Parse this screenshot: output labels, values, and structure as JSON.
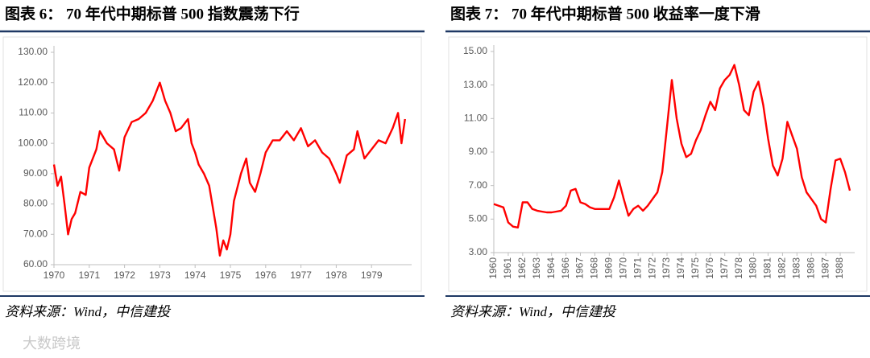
{
  "chart_data": [
    {
      "type": "line",
      "title": "图表 6：  70 年代中期标普 500 指数震荡下行",
      "source": "资料来源：Wind，中信建投",
      "color": "#ff0000",
      "x": [
        1970.0,
        1970.1,
        1970.2,
        1970.3,
        1970.4,
        1970.5,
        1970.6,
        1970.75,
        1970.9,
        1971.0,
        1971.2,
        1971.3,
        1971.5,
        1971.7,
        1971.85,
        1972.0,
        1972.2,
        1972.4,
        1972.6,
        1972.8,
        1973.0,
        1973.15,
        1973.3,
        1973.45,
        1973.6,
        1973.8,
        1973.9,
        1974.0,
        1974.1,
        1974.25,
        1974.4,
        1974.5,
        1974.6,
        1974.7,
        1974.8,
        1974.9,
        1975.0,
        1975.1,
        1975.3,
        1975.45,
        1975.55,
        1975.7,
        1975.85,
        1976.0,
        1976.2,
        1976.4,
        1976.6,
        1976.8,
        1977.0,
        1977.2,
        1977.4,
        1977.6,
        1977.8,
        1978.0,
        1978.1,
        1978.3,
        1978.5,
        1978.6,
        1978.8,
        1979.0,
        1979.2,
        1979.4,
        1979.6,
        1979.75,
        1979.85,
        1979.95
      ],
      "values": [
        93,
        86,
        89,
        80,
        70,
        75,
        77,
        84,
        83,
        92,
        98,
        104,
        100,
        98,
        91,
        102,
        107,
        108,
        110,
        114,
        120,
        114,
        110,
        104,
        105,
        108,
        100,
        97,
        93,
        90,
        86,
        79,
        72,
        63,
        68,
        65,
        70,
        81,
        90,
        95,
        87,
        84,
        90,
        97,
        101,
        101,
        104,
        101,
        105,
        99,
        101,
        97,
        95,
        90,
        87,
        96,
        98,
        104,
        95,
        98,
        101,
        100,
        105,
        110,
        100,
        108
      ],
      "xlim": [
        1970,
        1980
      ],
      "xticks": [
        1970,
        1971,
        1972,
        1973,
        1974,
        1975,
        1976,
        1977,
        1978,
        1979
      ],
      "ylim": [
        60,
        130
      ],
      "yticks": [
        {
          "value": 60,
          "label": "60.00"
        },
        {
          "value": 70,
          "label": "70.00"
        },
        {
          "value": 80,
          "label": "80.00"
        },
        {
          "value": 90,
          "label": "90.00"
        },
        {
          "value": 100,
          "label": "100.00"
        },
        {
          "value": 110,
          "label": "110.00"
        },
        {
          "value": 120,
          "label": "120.00"
        },
        {
          "value": 130,
          "label": "130.00"
        }
      ]
    },
    {
      "type": "line",
      "title": "图表 7：  70 年代中期标普 500 收益率一度下滑",
      "source": "资料来源：Wind，中信建投",
      "color": "#ff0000",
      "categories": [
        "1960",
        null,
        null,
        "1961",
        null,
        null,
        "1962",
        null,
        null,
        "1963",
        null,
        null,
        "1964",
        null,
        null,
        "1966",
        null,
        null,
        "1967",
        null,
        null,
        "1968",
        null,
        null,
        "1969",
        null,
        null,
        "1970",
        null,
        null,
        "1971",
        null,
        null,
        "1972",
        null,
        null,
        "1973",
        null,
        null,
        "1974",
        null,
        null,
        "1975",
        null,
        null,
        "1976",
        null,
        null,
        "1977",
        null,
        null,
        "1978",
        null,
        null,
        "1980",
        null,
        null,
        "1981",
        null,
        null,
        "1982",
        null,
        null,
        "1983",
        null,
        null,
        "1986",
        null,
        null,
        "1987",
        null,
        null,
        "1988",
        null,
        null
      ],
      "values": [
        5.9,
        5.8,
        5.7,
        4.8,
        4.55,
        4.5,
        6.0,
        6.0,
        5.6,
        5.5,
        5.45,
        5.4,
        5.4,
        5.45,
        5.5,
        5.8,
        6.7,
        6.8,
        6.0,
        5.9,
        5.7,
        5.6,
        5.6,
        5.6,
        5.6,
        6.3,
        7.3,
        6.2,
        5.2,
        5.6,
        5.8,
        5.5,
        5.8,
        6.2,
        6.6,
        7.8,
        10.5,
        13.3,
        11.0,
        9.5,
        8.7,
        8.9,
        9.7,
        10.3,
        11.2,
        12.0,
        11.5,
        12.8,
        13.3,
        13.6,
        14.2,
        13.0,
        11.5,
        11.2,
        12.6,
        13.2,
        11.8,
        9.8,
        8.2,
        7.6,
        8.6,
        10.8,
        10.0,
        9.2,
        7.5,
        6.6,
        6.2,
        5.8,
        5.0,
        4.8,
        6.8,
        8.5,
        8.6,
        7.8,
        6.7
      ],
      "ylim": [
        3,
        15
      ],
      "yticks": [
        {
          "value": 3,
          "label": "3.00"
        },
        {
          "value": 5,
          "label": "5.00"
        },
        {
          "value": 7,
          "label": "7.00"
        },
        {
          "value": 9,
          "label": "9.00"
        },
        {
          "value": 11,
          "label": "11.00"
        },
        {
          "value": 13,
          "label": "13.00"
        },
        {
          "value": 15,
          "label": "15.00"
        }
      ]
    }
  ],
  "watermark": "大数跨境"
}
